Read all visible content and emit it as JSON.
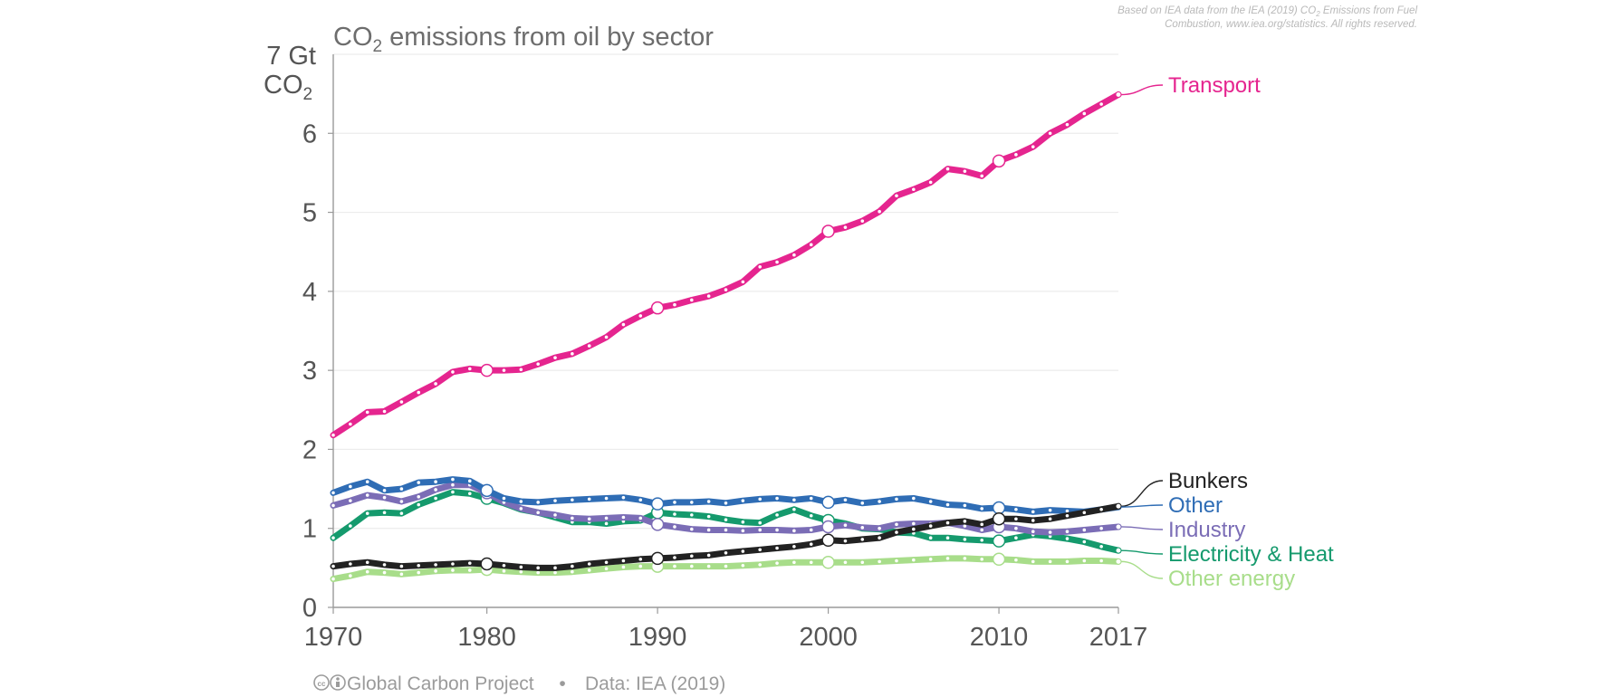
{
  "credit": {
    "line1_a": "Based on IEA data from the IEA (2019) CO",
    "line1_sub": "2",
    "line1_b": " Emissions from Fuel",
    "line2": "Combustion, www.iea.org/statistics. All rights reserved."
  },
  "footer": {
    "project": "Global Carbon Project",
    "separator": "•",
    "data_source": "Data: IEA (2019)"
  },
  "chart_data": {
    "type": "line",
    "title": {
      "main": "CO",
      "sub": "2",
      "rest": " emissions from oil by sector"
    },
    "ylabel": {
      "line1": "7 Gt",
      "line2_main": "CO",
      "line2_sub": "2"
    },
    "ylim": [
      0,
      7
    ],
    "xlim": [
      1971,
      2017
    ],
    "yticks": [
      "0",
      "1",
      "2",
      "3",
      "4",
      "5",
      "6"
    ],
    "ytick_values": [
      0,
      1,
      2,
      3,
      4,
      5,
      6
    ],
    "xticks": [
      "1970",
      "1980",
      "1990",
      "2000",
      "2010",
      "2017"
    ],
    "xtick_values": [
      1971,
      1980,
      1990,
      2000,
      2010,
      2017
    ],
    "grid": true,
    "x": [
      1971,
      1972,
      1973,
      1974,
      1975,
      1976,
      1977,
      1978,
      1979,
      1980,
      1981,
      1982,
      1983,
      1984,
      1985,
      1986,
      1987,
      1988,
      1989,
      1990,
      1991,
      1992,
      1993,
      1994,
      1995,
      1996,
      1997,
      1998,
      1999,
      2000,
      2001,
      2002,
      2003,
      2004,
      2005,
      2006,
      2007,
      2008,
      2009,
      2010,
      2011,
      2012,
      2013,
      2014,
      2015,
      2016,
      2017
    ],
    "series": [
      {
        "name": "Transport",
        "color": "#e5258f",
        "values": [
          2.18,
          2.32,
          2.47,
          2.48,
          2.6,
          2.72,
          2.83,
          2.98,
          3.02,
          3.0,
          3.0,
          3.01,
          3.08,
          3.16,
          3.21,
          3.31,
          3.42,
          3.58,
          3.69,
          3.79,
          3.83,
          3.89,
          3.94,
          4.02,
          4.12,
          4.31,
          4.37,
          4.46,
          4.59,
          4.76,
          4.81,
          4.89,
          5.01,
          5.21,
          5.29,
          5.38,
          5.55,
          5.52,
          5.46,
          5.65,
          5.73,
          5.83,
          6.0,
          6.11,
          6.25,
          6.37,
          6.49
        ]
      },
      {
        "name": "Bunkers",
        "color": "#222222",
        "values": [
          0.52,
          0.55,
          0.57,
          0.54,
          0.52,
          0.53,
          0.54,
          0.55,
          0.56,
          0.55,
          0.53,
          0.51,
          0.5,
          0.5,
          0.52,
          0.55,
          0.57,
          0.59,
          0.61,
          0.62,
          0.63,
          0.65,
          0.66,
          0.69,
          0.71,
          0.73,
          0.75,
          0.77,
          0.8,
          0.85,
          0.84,
          0.86,
          0.88,
          0.95,
          0.99,
          1.03,
          1.07,
          1.09,
          1.05,
          1.12,
          1.12,
          1.1,
          1.12,
          1.16,
          1.2,
          1.24,
          1.28
        ]
      },
      {
        "name": "Other",
        "color": "#2f6db5",
        "values": [
          1.45,
          1.53,
          1.59,
          1.48,
          1.5,
          1.58,
          1.59,
          1.62,
          1.6,
          1.48,
          1.38,
          1.34,
          1.33,
          1.35,
          1.36,
          1.37,
          1.38,
          1.39,
          1.36,
          1.31,
          1.33,
          1.33,
          1.34,
          1.32,
          1.35,
          1.37,
          1.38,
          1.36,
          1.38,
          1.33,
          1.36,
          1.32,
          1.34,
          1.37,
          1.38,
          1.34,
          1.3,
          1.29,
          1.25,
          1.26,
          1.24,
          1.21,
          1.23,
          1.22,
          1.21,
          1.24,
          1.27
        ]
      },
      {
        "name": "Industry",
        "color": "#7b6db6",
        "values": [
          1.29,
          1.35,
          1.42,
          1.39,
          1.34,
          1.4,
          1.49,
          1.55,
          1.55,
          1.45,
          1.33,
          1.25,
          1.2,
          1.17,
          1.13,
          1.12,
          1.13,
          1.14,
          1.13,
          1.05,
          1.02,
          0.99,
          0.98,
          0.98,
          0.97,
          0.98,
          0.98,
          0.97,
          0.98,
          1.02,
          1.04,
          1.01,
          1.0,
          1.05,
          1.06,
          1.06,
          1.07,
          1.03,
          0.98,
          1.02,
          1.0,
          0.96,
          0.95,
          0.96,
          0.98,
          1.0,
          1.02
        ]
      },
      {
        "name": "Electricity & Heat",
        "color": "#159a6d",
        "values": [
          0.88,
          1.03,
          1.19,
          1.2,
          1.19,
          1.3,
          1.38,
          1.46,
          1.44,
          1.38,
          1.32,
          1.24,
          1.2,
          1.14,
          1.08,
          1.08,
          1.06,
          1.09,
          1.1,
          1.2,
          1.18,
          1.17,
          1.15,
          1.11,
          1.08,
          1.07,
          1.17,
          1.24,
          1.16,
          1.1,
          1.06,
          1.0,
          0.99,
          0.95,
          0.94,
          0.88,
          0.88,
          0.86,
          0.85,
          0.84,
          0.88,
          0.92,
          0.9,
          0.87,
          0.83,
          0.77,
          0.72
        ]
      },
      {
        "name": "Other energy",
        "color": "#a8dd8a",
        "values": [
          0.36,
          0.4,
          0.45,
          0.44,
          0.42,
          0.44,
          0.46,
          0.47,
          0.47,
          0.48,
          0.46,
          0.45,
          0.44,
          0.44,
          0.45,
          0.47,
          0.49,
          0.51,
          0.52,
          0.52,
          0.52,
          0.52,
          0.52,
          0.52,
          0.53,
          0.54,
          0.56,
          0.57,
          0.57,
          0.57,
          0.57,
          0.57,
          0.58,
          0.59,
          0.6,
          0.61,
          0.62,
          0.62,
          0.61,
          0.61,
          0.6,
          0.58,
          0.58,
          0.58,
          0.59,
          0.59,
          0.58
        ]
      }
    ]
  }
}
